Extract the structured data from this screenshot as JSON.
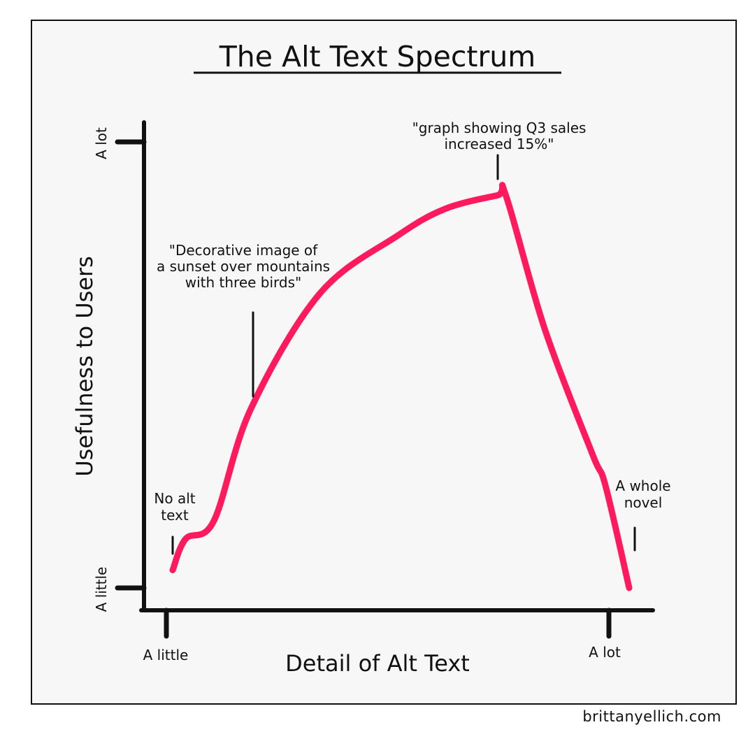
{
  "chart_data": {
    "type": "line",
    "title": "The Alt Text Spectrum",
    "xlabel": "Detail of Alt Text",
    "ylabel": "Usefulness to Users",
    "x_ticks": [
      "A little",
      "A lot"
    ],
    "y_ticks": [
      "A little",
      "A lot"
    ],
    "xlim": [
      0,
      1
    ],
    "ylim": [
      0,
      1
    ],
    "grid": false,
    "series": [
      {
        "color": "#ff1a5e",
        "x": [
          0.0,
          0.03,
          0.095,
          0.18,
          0.34,
          0.52,
          0.63,
          0.75,
          0.77,
          0.86,
          0.97,
          1.0,
          1.055
        ],
        "y": [
          0.04,
          0.11,
          0.15,
          0.4,
          0.66,
          0.79,
          0.85,
          0.88,
          0.88,
          0.58,
          0.3,
          0.23,
          0.0
        ]
      }
    ],
    "annotations": [
      {
        "lines": [
          "No alt",
          "text"
        ],
        "x": 0.0,
        "y": 0.04
      },
      {
        "lines": [
          "\"Decorative image of",
          "a sunset over mountains",
          "with three birds\""
        ],
        "x": 0.2,
        "y": 0.4
      },
      {
        "lines": [
          "\"graph showing Q3 sales",
          "increased 15%\""
        ],
        "x": 0.75,
        "y": 0.88
      },
      {
        "lines": [
          "A whole",
          "novel"
        ],
        "x": 1.055,
        "y": 0.0
      }
    ]
  },
  "credit": "brittanyellich.com"
}
